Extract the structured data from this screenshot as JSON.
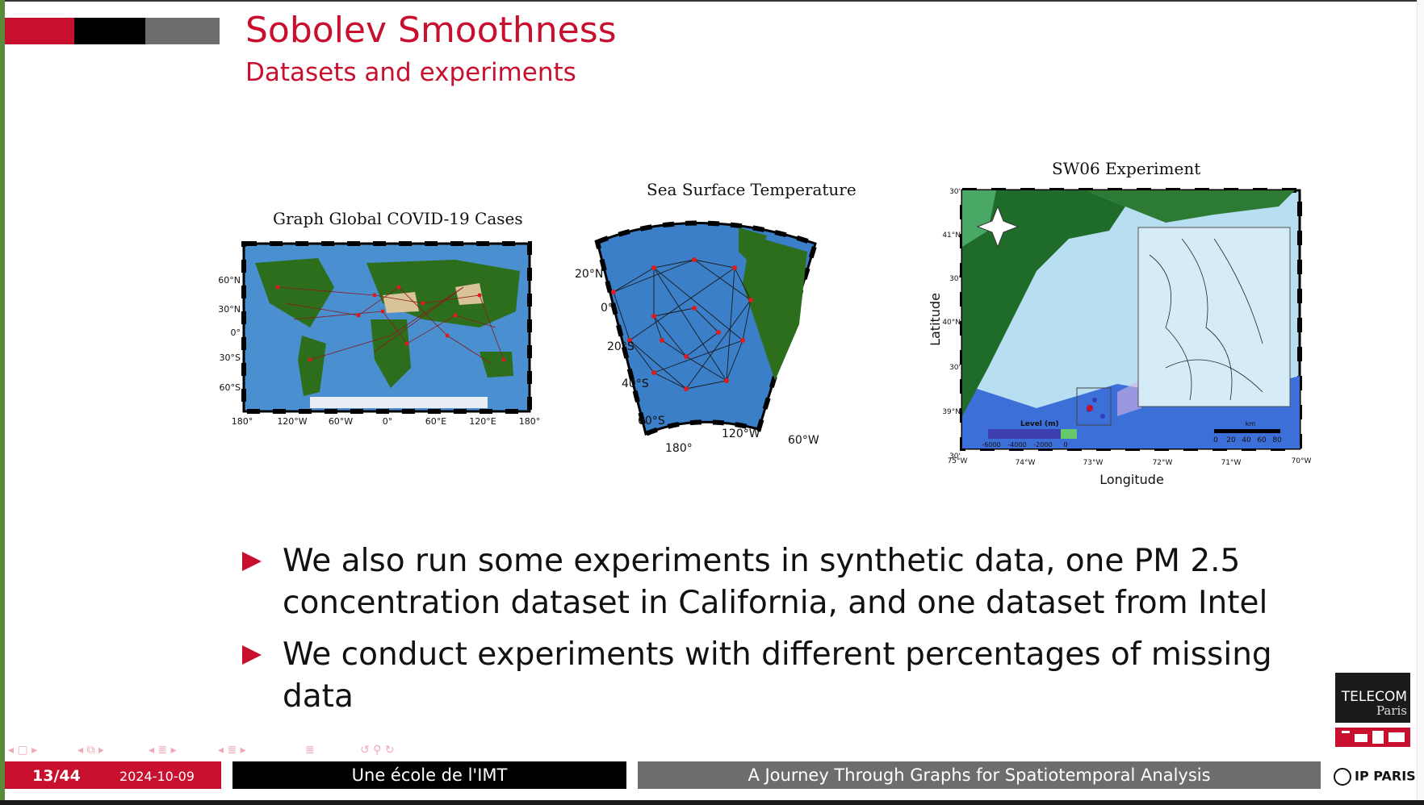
{
  "slide": {
    "title": "Sobolev Smoothness",
    "subtitle": "Datasets and experiments"
  },
  "figures": {
    "covid": {
      "title": "Graph Global COVID-19 Cases",
      "lat_labels": [
        "60°N",
        "30°N",
        "0°",
        "30°S",
        "60°S"
      ],
      "lon_labels": [
        "180°",
        "120°W",
        "60°W",
        "0°",
        "60°E",
        "120°E",
        "180°"
      ]
    },
    "sst": {
      "title": "Sea Surface Temperature",
      "lat_labels": [
        "20°N",
        "0°",
        "20°S",
        "40°S",
        "60°S"
      ],
      "lon_labels": [
        "180°",
        "120°W",
        "60°W"
      ]
    },
    "sw06": {
      "title": "SW06 Experiment",
      "xlabel": "Longitude",
      "ylabel": "Latitude",
      "lat_labels": [
        "30'",
        "41°N",
        "30'",
        "40°N",
        "30'",
        "39°N",
        "30'"
      ],
      "lon_labels": [
        "75°W",
        "74°W",
        "73°W",
        "72°W",
        "71°W",
        "70°W"
      ],
      "level_label": "Level (m)",
      "level_ticks": [
        "-6000",
        "-4000",
        "-2000",
        "0"
      ],
      "scale_label": "km",
      "scale_ticks": [
        "0",
        "20",
        "40",
        "60",
        "80"
      ]
    }
  },
  "bullets": [
    {
      "line1": "We also run some experiments in synthetic data, one PM 2.5",
      "line2": "concentration dataset in California, and one dataset from Intel"
    },
    {
      "line1": "We conduct experiments with different percentages of missing data"
    }
  ],
  "footer": {
    "page": "13/44",
    "date": "2024-10-09",
    "institution": "Une école de l'IMT",
    "talk_title": "A Journey Through Graphs for Spatiotemporal Analysis"
  },
  "logos": {
    "telecom_line1": "TELECOM",
    "telecom_line2": "Paris",
    "ip_paris": "IP PARIS"
  },
  "icons": [
    "nav-frame-icon",
    "nav-section-icon",
    "nav-subsection-icon",
    "nav-appendix-icon",
    "search-icon",
    "back-forward-icon"
  ],
  "colors": {
    "accent": "#c8102e",
    "dark": "#000000",
    "grey": "#6d6d6d"
  }
}
